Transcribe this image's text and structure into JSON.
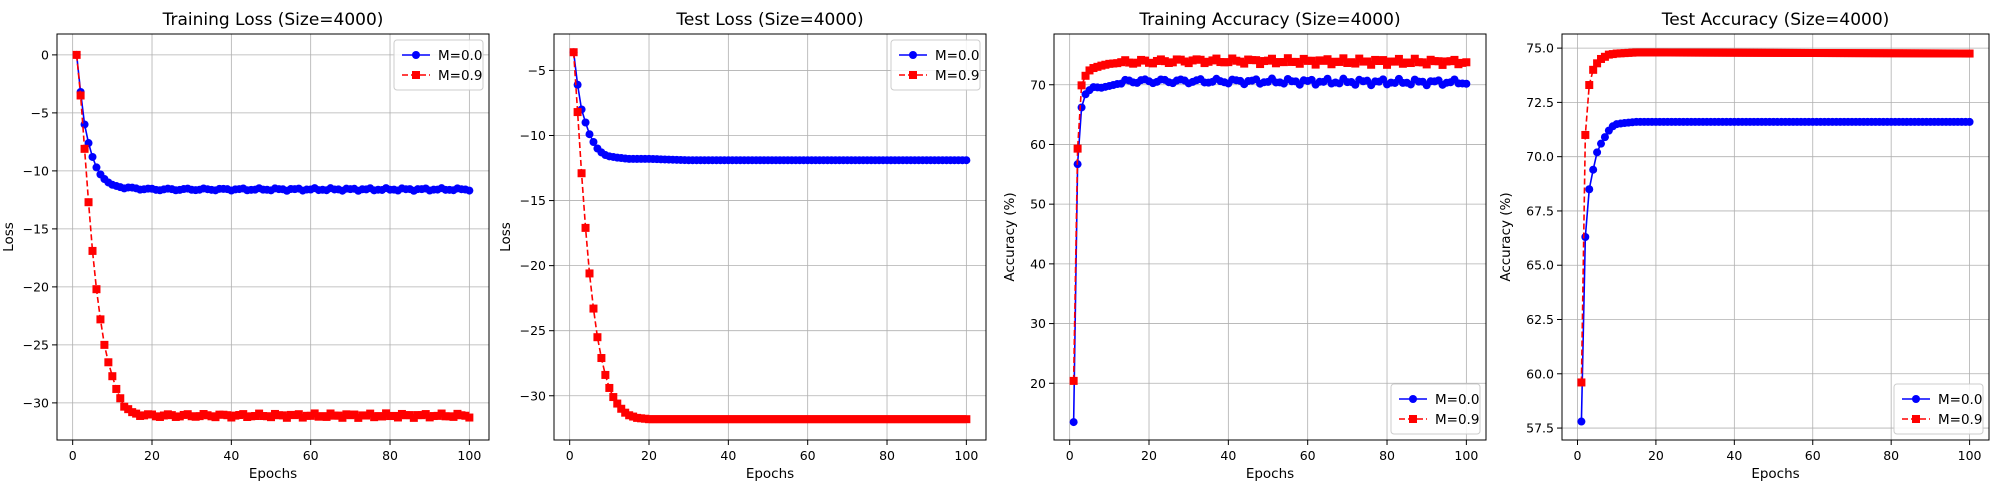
{
  "figure": {
    "titles": [
      "Training Loss (Size=4000)",
      "Test Loss (Size=4000)",
      "Training Accuracy (Size=4000)",
      "Test Accuracy (Size=4000)"
    ]
  },
  "chart_data": [
    {
      "type": "line",
      "title": "Training Loss (Size=4000)",
      "xlabel": "Epochs",
      "ylabel": "Loss",
      "xlim": [
        -3.95,
        104.95
      ],
      "ylim": [
        -33.2,
        1.8
      ],
      "xticks": [
        0,
        20,
        40,
        60,
        80,
        100
      ],
      "yticks": [
        0,
        -5,
        -10,
        -15,
        -20,
        -25,
        -30
      ],
      "grid": true,
      "legend": "upper right",
      "series": [
        {
          "name": "M=0.0",
          "color": "#0000ff",
          "linestyle": "solid",
          "marker": "circle",
          "keypoints": [
            [
              1,
              0
            ],
            [
              2,
              -3.2
            ],
            [
              3,
              -6.0
            ],
            [
              4,
              -7.6
            ],
            [
              5,
              -8.8
            ],
            [
              6,
              -9.7
            ],
            [
              7,
              -10.3
            ],
            [
              8,
              -10.7
            ],
            [
              9,
              -11.0
            ],
            [
              10,
              -11.2
            ],
            [
              12,
              -11.4
            ],
            [
              15,
              -11.5
            ],
            [
              20,
              -11.6
            ],
            [
              30,
              -11.6
            ],
            [
              100,
              -11.6
            ]
          ],
          "noise": 0.12
        },
        {
          "name": "M=0.9",
          "color": "#ff0000",
          "linestyle": "dashed",
          "marker": "square",
          "keypoints": [
            [
              1,
              0
            ],
            [
              2,
              -3.5
            ],
            [
              3,
              -8.1
            ],
            [
              4,
              -12.7
            ],
            [
              5,
              -16.9
            ],
            [
              6,
              -20.2
            ],
            [
              7,
              -22.8
            ],
            [
              8,
              -25.0
            ],
            [
              9,
              -26.5
            ],
            [
              10,
              -27.7
            ],
            [
              11,
              -28.8
            ],
            [
              12,
              -29.6
            ],
            [
              13,
              -30.2
            ],
            [
              14,
              -30.6
            ],
            [
              15,
              -30.9
            ],
            [
              17,
              -31.0
            ],
            [
              20,
              -31.1
            ],
            [
              30,
              -31.1
            ],
            [
              100,
              -31.1
            ]
          ],
          "noise": 0.2
        }
      ]
    },
    {
      "type": "line",
      "title": "Test Loss (Size=4000)",
      "xlabel": "Epochs",
      "ylabel": "Loss",
      "xlim": [
        -3.95,
        104.95
      ],
      "ylim": [
        -33.4,
        -2.2
      ],
      "xticks": [
        0,
        20,
        40,
        60,
        80,
        100
      ],
      "yticks": [
        -5,
        -10,
        -15,
        -20,
        -25,
        -30
      ],
      "grid": true,
      "legend": "upper right",
      "series": [
        {
          "name": "M=0.0",
          "color": "#0000ff",
          "linestyle": "solid",
          "marker": "circle",
          "keypoints": [
            [
              1,
              -3.6
            ],
            [
              2,
              -6.1
            ],
            [
              3,
              -8.0
            ],
            [
              4,
              -9.0
            ],
            [
              5,
              -9.9
            ],
            [
              6,
              -10.5
            ],
            [
              7,
              -11.0
            ],
            [
              8,
              -11.3
            ],
            [
              9,
              -11.5
            ],
            [
              10,
              -11.6
            ],
            [
              12,
              -11.7
            ],
            [
              15,
              -11.8
            ],
            [
              20,
              -11.8
            ],
            [
              30,
              -11.9
            ],
            [
              100,
              -11.9
            ]
          ],
          "noise": 0
        },
        {
          "name": "M=0.9",
          "color": "#ff0000",
          "linestyle": "dashed",
          "marker": "square",
          "keypoints": [
            [
              1,
              -3.6
            ],
            [
              2,
              -8.2
            ],
            [
              3,
              -12.9
            ],
            [
              4,
              -17.1
            ],
            [
              5,
              -20.6
            ],
            [
              6,
              -23.3
            ],
            [
              7,
              -25.5
            ],
            [
              8,
              -27.1
            ],
            [
              9,
              -28.4
            ],
            [
              10,
              -29.4
            ],
            [
              11,
              -30.1
            ],
            [
              12,
              -30.6
            ],
            [
              13,
              -31.0
            ],
            [
              14,
              -31.3
            ],
            [
              15,
              -31.5
            ],
            [
              17,
              -31.7
            ],
            [
              20,
              -31.8
            ],
            [
              30,
              -31.8
            ],
            [
              100,
              -31.8
            ]
          ],
          "noise": 0
        }
      ]
    },
    {
      "type": "line",
      "title": "Training Accuracy (Size=4000)",
      "xlabel": "Epochs",
      "ylabel": "Accuracy (%)",
      "xlim": [
        -3.95,
        104.95
      ],
      "ylim": [
        10.5,
        78.5
      ],
      "xticks": [
        0,
        20,
        40,
        60,
        80,
        100
      ],
      "yticks": [
        20,
        30,
        40,
        50,
        60,
        70
      ],
      "grid": true,
      "legend": "lower right",
      "series": [
        {
          "name": "M=0.0",
          "color": "#0000ff",
          "linestyle": "solid",
          "marker": "circle",
          "keypoints": [
            [
              1,
              13.5
            ],
            [
              2,
              56.7
            ],
            [
              3,
              66.2
            ],
            [
              4,
              68.4
            ],
            [
              5,
              69.1
            ],
            [
              6,
              69.6
            ],
            [
              8,
              69.5
            ],
            [
              10,
              69.8
            ],
            [
              15,
              70.6
            ],
            [
              30,
              70.6
            ],
            [
              100,
              70.4
            ]
          ],
          "noise": 0.55
        },
        {
          "name": "M=0.9",
          "color": "#ff0000",
          "linestyle": "dashed",
          "marker": "square",
          "keypoints": [
            [
              1,
              20.4
            ],
            [
              2,
              59.3
            ],
            [
              3,
              69.9
            ],
            [
              4,
              71.5
            ],
            [
              5,
              72.4
            ],
            [
              6,
              72.8
            ],
            [
              8,
              73.2
            ],
            [
              10,
              73.5
            ],
            [
              15,
              73.8
            ],
            [
              30,
              74.0
            ],
            [
              100,
              73.8
            ]
          ],
          "noise": 0.55
        }
      ]
    },
    {
      "type": "line",
      "title": "Test Accuracy (Size=4000)",
      "xlabel": "Epochs",
      "ylabel": "Accuracy (%)",
      "xlim": [
        -3.95,
        104.95
      ],
      "ylim": [
        56.95,
        75.65
      ],
      "xticks": [
        0,
        20,
        40,
        60,
        80,
        100
      ],
      "yticks": [
        57.5,
        60.0,
        62.5,
        65.0,
        67.5,
        70.0,
        72.5,
        75.0
      ],
      "grid": true,
      "legend": "lower right",
      "series": [
        {
          "name": "M=0.0",
          "color": "#0000ff",
          "linestyle": "solid",
          "marker": "circle",
          "keypoints": [
            [
              1,
              57.8
            ],
            [
              2,
              66.3
            ],
            [
              3,
              68.5
            ],
            [
              4,
              69.4
            ],
            [
              5,
              70.2
            ],
            [
              6,
              70.6
            ],
            [
              7,
              70.9
            ],
            [
              8,
              71.2
            ],
            [
              9,
              71.4
            ],
            [
              10,
              71.5
            ],
            [
              12,
              71.55
            ],
            [
              15,
              71.6
            ],
            [
              100,
              71.6
            ]
          ],
          "noise": 0
        },
        {
          "name": "M=0.9",
          "color": "#ff0000",
          "linestyle": "dashed",
          "marker": "square",
          "keypoints": [
            [
              1,
              59.6
            ],
            [
              2,
              71.0
            ],
            [
              3,
              73.3
            ],
            [
              4,
              74.0
            ],
            [
              5,
              74.3
            ],
            [
              6,
              74.5
            ],
            [
              7,
              74.6
            ],
            [
              8,
              74.7
            ],
            [
              10,
              74.75
            ],
            [
              15,
              74.8
            ],
            [
              20,
              74.8
            ],
            [
              100,
              74.75
            ]
          ],
          "noise": 0
        }
      ]
    }
  ]
}
